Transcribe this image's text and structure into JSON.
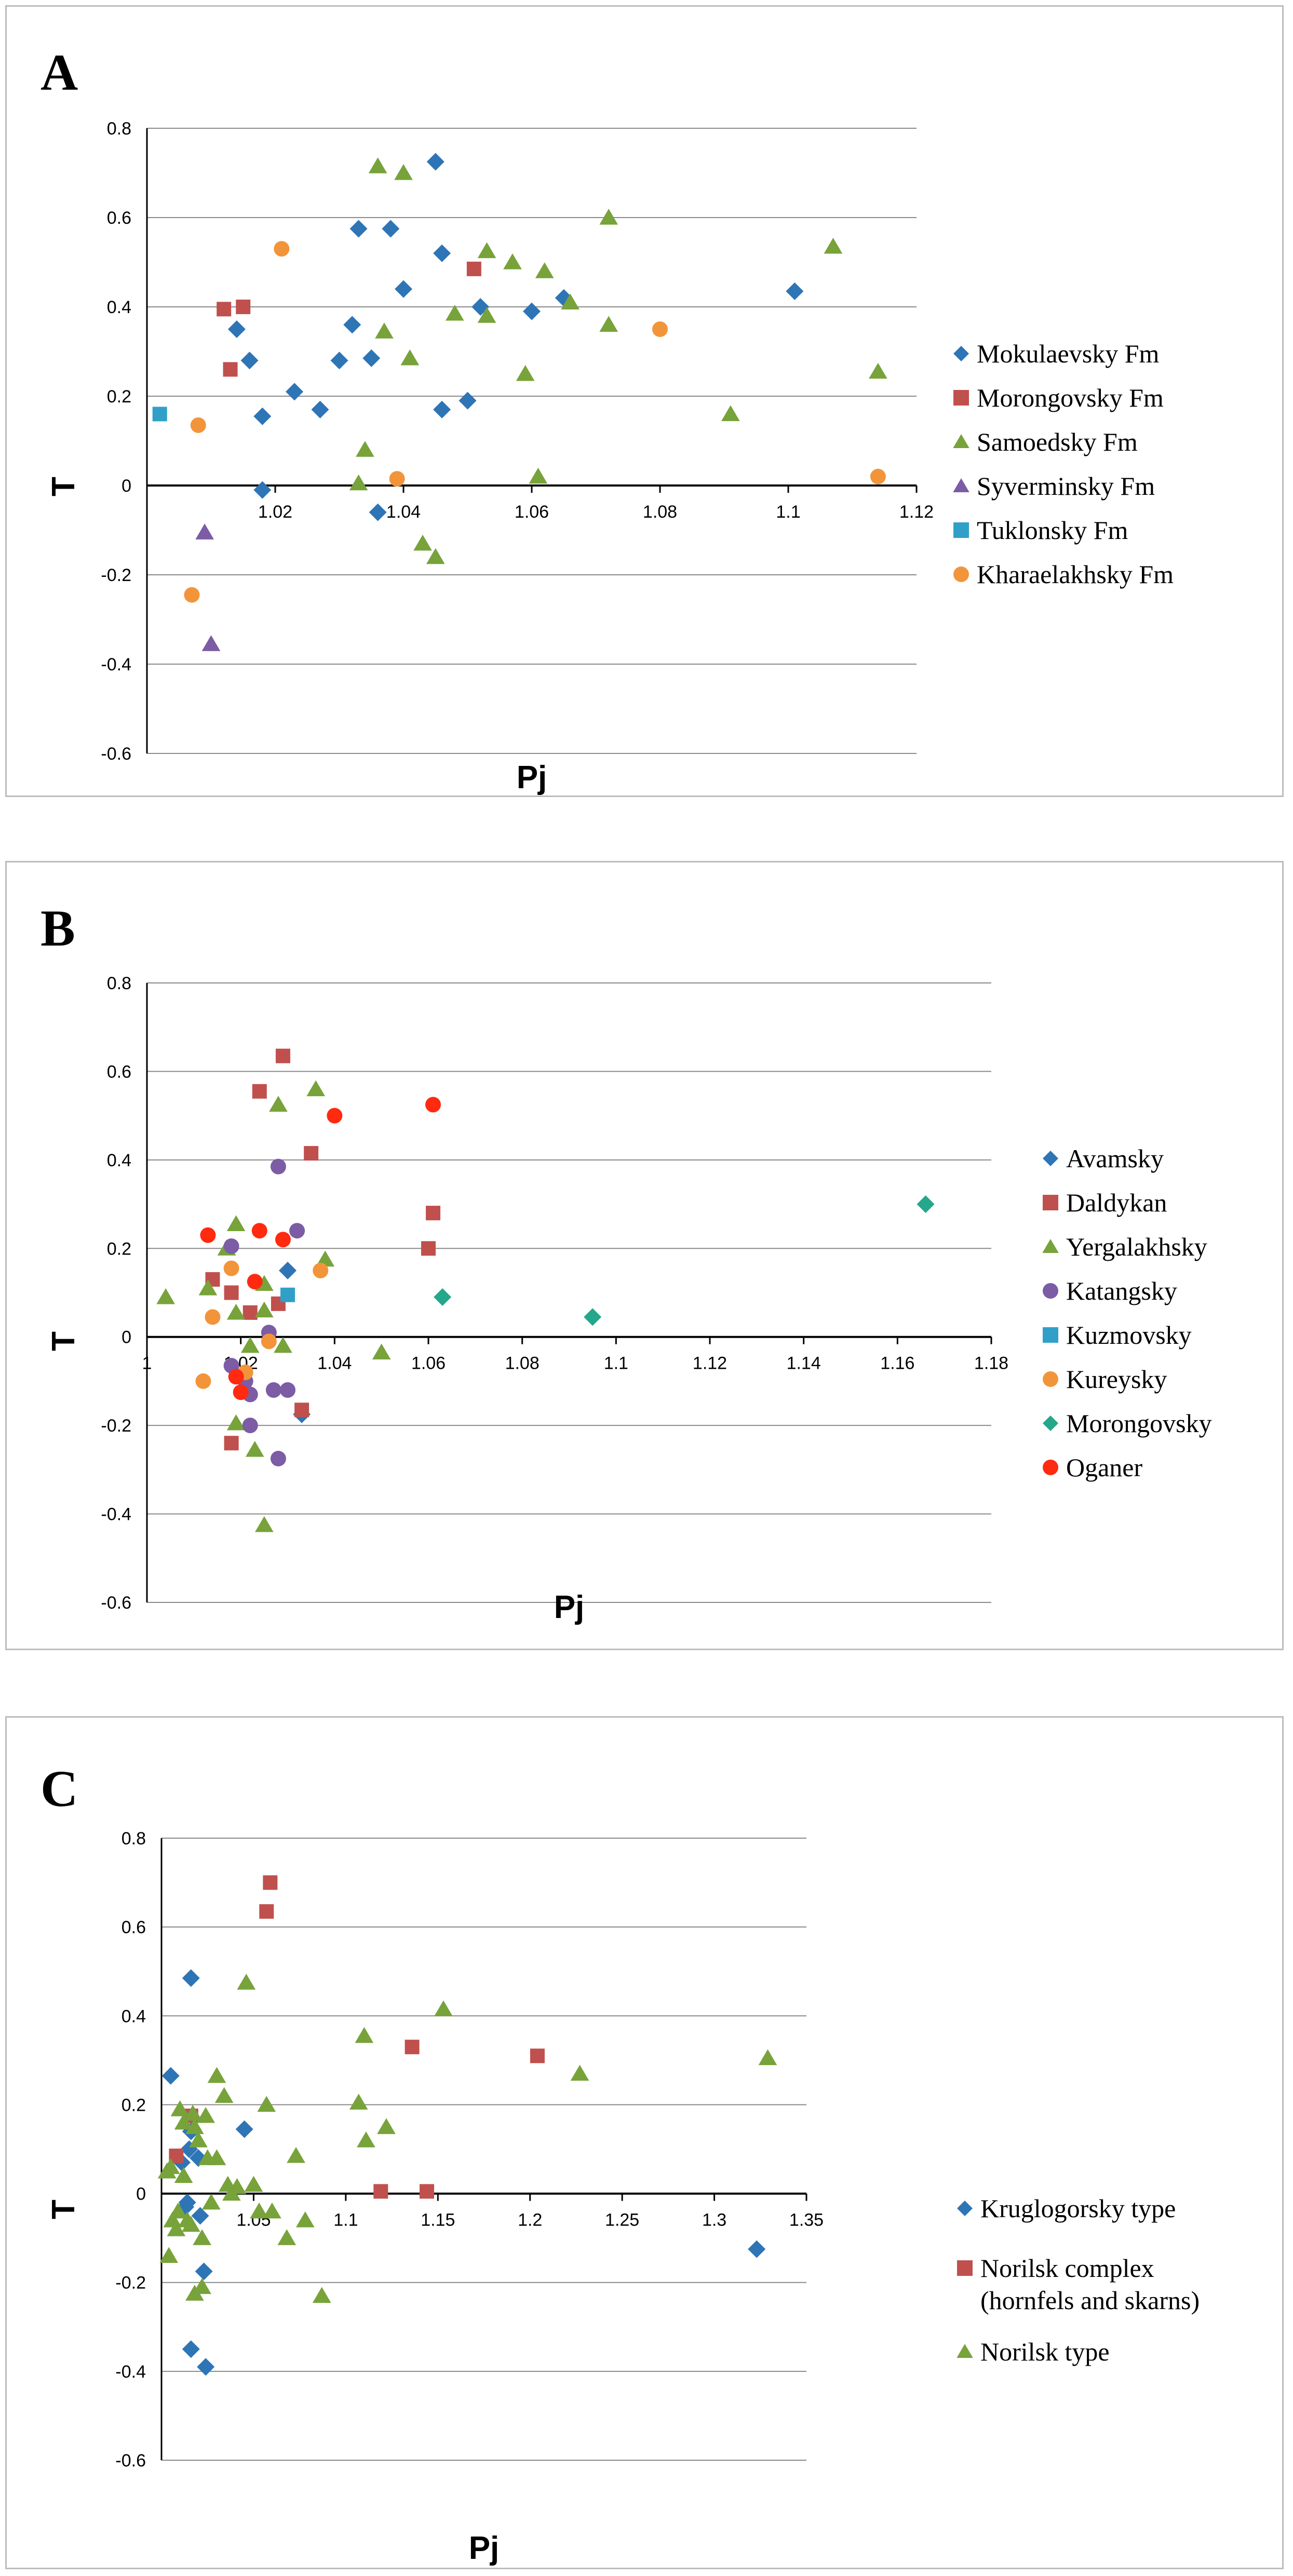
{
  "chart_data": [
    {
      "type": "scatter",
      "panel_label": "A",
      "xlabel": "Pj",
      "ylabel": "T",
      "xlim": [
        1.0,
        1.12
      ],
      "ylim": [
        -0.6,
        0.8
      ],
      "xticks": [
        "1.02",
        "1.04",
        "1.06",
        "1.08",
        "1.1",
        "1.12"
      ],
      "yticks": [
        "0.8",
        "0.6",
        "0.4",
        "0.2",
        "0",
        "-0.2",
        "-0.4",
        "-0.6"
      ],
      "legend_position": "right",
      "series": [
        {
          "name": "Mokulaevsky Fm",
          "marker": "diamond",
          "color": "#2e75b6",
          "points": [
            [
              1.014,
              0.35
            ],
            [
              1.016,
              0.28
            ],
            [
              1.018,
              0.155
            ],
            [
              1.018,
              -0.01
            ],
            [
              1.023,
              0.21
            ],
            [
              1.027,
              0.17
            ],
            [
              1.03,
              0.28
            ],
            [
              1.032,
              0.36
            ],
            [
              1.033,
              0.575
            ],
            [
              1.035,
              0.285
            ],
            [
              1.036,
              -0.06
            ],
            [
              1.038,
              0.575
            ],
            [
              1.04,
              0.44
            ],
            [
              1.045,
              0.725
            ],
            [
              1.046,
              0.52
            ],
            [
              1.046,
              0.17
            ],
            [
              1.05,
              0.19
            ],
            [
              1.052,
              0.4
            ],
            [
              1.06,
              0.39
            ],
            [
              1.065,
              0.42
            ],
            [
              1.101,
              0.435
            ]
          ]
        },
        {
          "name": "Morongovsky Fm",
          "marker": "square",
          "color": "#c0504d",
          "points": [
            [
              1.012,
              0.395
            ],
            [
              1.015,
              0.4
            ],
            [
              1.013,
              0.26
            ],
            [
              1.051,
              0.485
            ]
          ]
        },
        {
          "name": "Samoedsky Fm",
          "marker": "triangle",
          "color": "#77a33a",
          "points": [
            [
              1.034,
              0.08
            ],
            [
              1.033,
              0.005
            ],
            [
              1.036,
              0.715
            ],
            [
              1.037,
              0.345
            ],
            [
              1.04,
              0.7
            ],
            [
              1.041,
              0.285
            ],
            [
              1.043,
              -0.13
            ],
            [
              1.045,
              -0.16
            ],
            [
              1.048,
              0.385
            ],
            [
              1.053,
              0.525
            ],
            [
              1.053,
              0.38
            ],
            [
              1.057,
              0.5
            ],
            [
              1.059,
              0.25
            ],
            [
              1.061,
              0.02
            ],
            [
              1.062,
              0.48
            ],
            [
              1.066,
              0.41
            ],
            [
              1.072,
              0.6
            ],
            [
              1.072,
              0.36
            ],
            [
              1.091,
              0.16
            ],
            [
              1.107,
              0.535
            ],
            [
              1.114,
              0.255
            ]
          ]
        },
        {
          "name": "Syverminsky Fm",
          "marker": "triangle",
          "color": "#7b5ca5",
          "points": [
            [
              1.009,
              -0.105
            ],
            [
              1.01,
              -0.355
            ]
          ]
        },
        {
          "name": "Tuklonsky Fm",
          "marker": "square",
          "color": "#31a0c8",
          "points": [
            [
              1.002,
              0.16
            ]
          ]
        },
        {
          "name": "Kharaelakhsky Fm",
          "marker": "circle",
          "color": "#f2953a",
          "points": [
            [
              1.008,
              0.135
            ],
            [
              1.007,
              -0.245
            ],
            [
              1.021,
              0.53
            ],
            [
              1.039,
              0.015
            ],
            [
              1.08,
              0.35
            ],
            [
              1.114,
              0.02
            ]
          ]
        }
      ]
    },
    {
      "type": "scatter",
      "panel_label": "B",
      "xlabel": "Pj",
      "ylabel": "T",
      "xlim": [
        1.0,
        1.18
      ],
      "ylim": [
        -0.6,
        0.8
      ],
      "xticks": [
        "1",
        "1.02",
        "1.04",
        "1.06",
        "1.08",
        "1.1",
        "1.12",
        "1.14",
        "1.16",
        "1.18"
      ],
      "yticks": [
        "0.8",
        "0.6",
        "0.4",
        "0.2",
        "0",
        "-0.2",
        "-0.4",
        "-0.6"
      ],
      "legend_position": "right",
      "series": [
        {
          "name": "Avamsky",
          "marker": "diamond",
          "color": "#2e75b6",
          "points": [
            [
              1.03,
              0.15
            ],
            [
              1.033,
              -0.175
            ]
          ]
        },
        {
          "name": "Daldykan",
          "marker": "square",
          "color": "#c0504d",
          "points": [
            [
              1.014,
              0.13
            ],
            [
              1.018,
              0.1
            ],
            [
              1.018,
              -0.24
            ],
            [
              1.022,
              0.055
            ],
            [
              1.024,
              0.555
            ],
            [
              1.028,
              0.075
            ],
            [
              1.029,
              0.635
            ],
            [
              1.035,
              0.415
            ],
            [
              1.033,
              -0.165
            ],
            [
              1.06,
              0.2
            ],
            [
              1.061,
              0.28
            ]
          ]
        },
        {
          "name": "Yergalakhsky",
          "marker": "triangle",
          "color": "#77a33a",
          "points": [
            [
              1.004,
              0.09
            ],
            [
              1.013,
              0.11
            ],
            [
              1.017,
              0.2
            ],
            [
              1.019,
              0.255
            ],
            [
              1.019,
              0.055
            ],
            [
              1.019,
              -0.195
            ],
            [
              1.022,
              -0.02
            ],
            [
              1.023,
              -0.255
            ],
            [
              1.025,
              0.12
            ],
            [
              1.025,
              0.06
            ],
            [
              1.025,
              -0.425
            ],
            [
              1.028,
              0.525
            ],
            [
              1.029,
              -0.02
            ],
            [
              1.036,
              0.56
            ],
            [
              1.038,
              0.175
            ],
            [
              1.05,
              -0.035
            ]
          ]
        },
        {
          "name": "Katangsky",
          "marker": "circle",
          "color": "#7b5ca5",
          "points": [
            [
              1.018,
              0.205
            ],
            [
              1.018,
              -0.065
            ],
            [
              1.021,
              -0.1
            ],
            [
              1.022,
              -0.13
            ],
            [
              1.022,
              -0.2
            ],
            [
              1.026,
              0.01
            ],
            [
              1.027,
              -0.12
            ],
            [
              1.028,
              0.385
            ],
            [
              1.028,
              -0.275
            ],
            [
              1.03,
              -0.12
            ],
            [
              1.032,
              0.24
            ]
          ]
        },
        {
          "name": "Kuzmovsky",
          "marker": "square",
          "color": "#31a0c8",
          "points": [
            [
              1.03,
              0.095
            ]
          ]
        },
        {
          "name": "Kureysky",
          "marker": "circle",
          "color": "#f2953a",
          "points": [
            [
              1.012,
              -0.1
            ],
            [
              1.014,
              0.045
            ],
            [
              1.018,
              0.155
            ],
            [
              1.021,
              -0.08
            ],
            [
              1.026,
              -0.01
            ],
            [
              1.037,
              0.15
            ]
          ]
        },
        {
          "name": "Morongovsky",
          "marker": "diamond",
          "color": "#24a78a",
          "points": [
            [
              1.063,
              0.09
            ],
            [
              1.095,
              0.045
            ],
            [
              1.166,
              0.3
            ]
          ]
        },
        {
          "name": "Oganer",
          "marker": "circle",
          "color": "#ff2a10",
          "points": [
            [
              1.013,
              0.23
            ],
            [
              1.019,
              -0.09
            ],
            [
              1.02,
              -0.125
            ],
            [
              1.023,
              0.125
            ],
            [
              1.024,
              0.24
            ],
            [
              1.029,
              0.22
            ],
            [
              1.04,
              0.5
            ],
            [
              1.061,
              0.525
            ]
          ]
        }
      ]
    },
    {
      "type": "scatter",
      "panel_label": "C",
      "xlabel": "Pj",
      "ylabel": "T",
      "xlim": [
        1.0,
        1.35
      ],
      "ylim": [
        -0.6,
        0.8
      ],
      "xticks": [
        "1.05",
        "1.1",
        "1.15",
        "1.2",
        "1.25",
        "1.3",
        "1.35"
      ],
      "yticks": [
        "0.8",
        "0.6",
        "0.4",
        "0.2",
        "0",
        "-0.2",
        "-0.4",
        "-0.6"
      ],
      "legend_position": "right",
      "series": [
        {
          "name": "Kruglogorsky type",
          "marker": "diamond",
          "color": "#2e75b6",
          "points": [
            [
              1.005,
              0.265
            ],
            [
              1.016,
              0.485
            ],
            [
              1.011,
              0.07
            ],
            [
              1.014,
              -0.02
            ],
            [
              1.013,
              -0.03
            ],
            [
              1.015,
              0.1
            ],
            [
              1.02,
              0.08
            ],
            [
              1.016,
              0.14
            ],
            [
              1.016,
              -0.35
            ],
            [
              1.021,
              -0.05
            ],
            [
              1.023,
              -0.175
            ],
            [
              1.024,
              -0.39
            ],
            [
              1.045,
              0.145
            ],
            [
              1.323,
              -0.125
            ]
          ]
        },
        {
          "name": "Norilsk complex\n(hornfels and skarns)",
          "marker": "square",
          "color": "#c0504d",
          "points": [
            [
              1.008,
              0.085
            ],
            [
              1.016,
              0.175
            ],
            [
              1.059,
              0.7
            ],
            [
              1.057,
              0.635
            ],
            [
              1.136,
              0.33
            ],
            [
              1.119,
              0.005
            ],
            [
              1.144,
              0.005
            ],
            [
              1.204,
              0.31
            ]
          ]
        },
        {
          "name": "Norilsk type",
          "marker": "triangle",
          "color": "#77a33a",
          "points": [
            [
              1.003,
              0.05
            ],
            [
              1.005,
              0.06
            ],
            [
              1.004,
              -0.14
            ],
            [
              1.006,
              -0.06
            ],
            [
              1.008,
              -0.08
            ],
            [
              1.009,
              -0.04
            ],
            [
              1.01,
              0.19
            ],
            [
              1.012,
              0.16
            ],
            [
              1.012,
              0.04
            ],
            [
              1.014,
              -0.06
            ],
            [
              1.016,
              -0.07
            ],
            [
              1.017,
              0.18
            ],
            [
              1.018,
              0.15
            ],
            [
              1.018,
              -0.225
            ],
            [
              1.02,
              0.12
            ],
            [
              1.022,
              -0.21
            ],
            [
              1.022,
              -0.1
            ],
            [
              1.024,
              0.175
            ],
            [
              1.025,
              0.08
            ],
            [
              1.027,
              -0.02
            ],
            [
              1.03,
              0.265
            ],
            [
              1.03,
              0.08
            ],
            [
              1.034,
              0.22
            ],
            [
              1.036,
              0.02
            ],
            [
              1.038,
              0.0
            ],
            [
              1.041,
              0.015
            ],
            [
              1.046,
              0.475
            ],
            [
              1.05,
              0.02
            ],
            [
              1.053,
              -0.04
            ],
            [
              1.057,
              0.2
            ],
            [
              1.06,
              -0.04
            ],
            [
              1.068,
              -0.1
            ],
            [
              1.073,
              0.085
            ],
            [
              1.078,
              -0.06
            ],
            [
              1.087,
              -0.23
            ],
            [
              1.107,
              0.205
            ],
            [
              1.11,
              0.355
            ],
            [
              1.111,
              0.12
            ],
            [
              1.122,
              0.15
            ],
            [
              1.153,
              0.415
            ],
            [
              1.227,
              0.27
            ],
            [
              1.329,
              0.305
            ]
          ]
        }
      ]
    }
  ]
}
